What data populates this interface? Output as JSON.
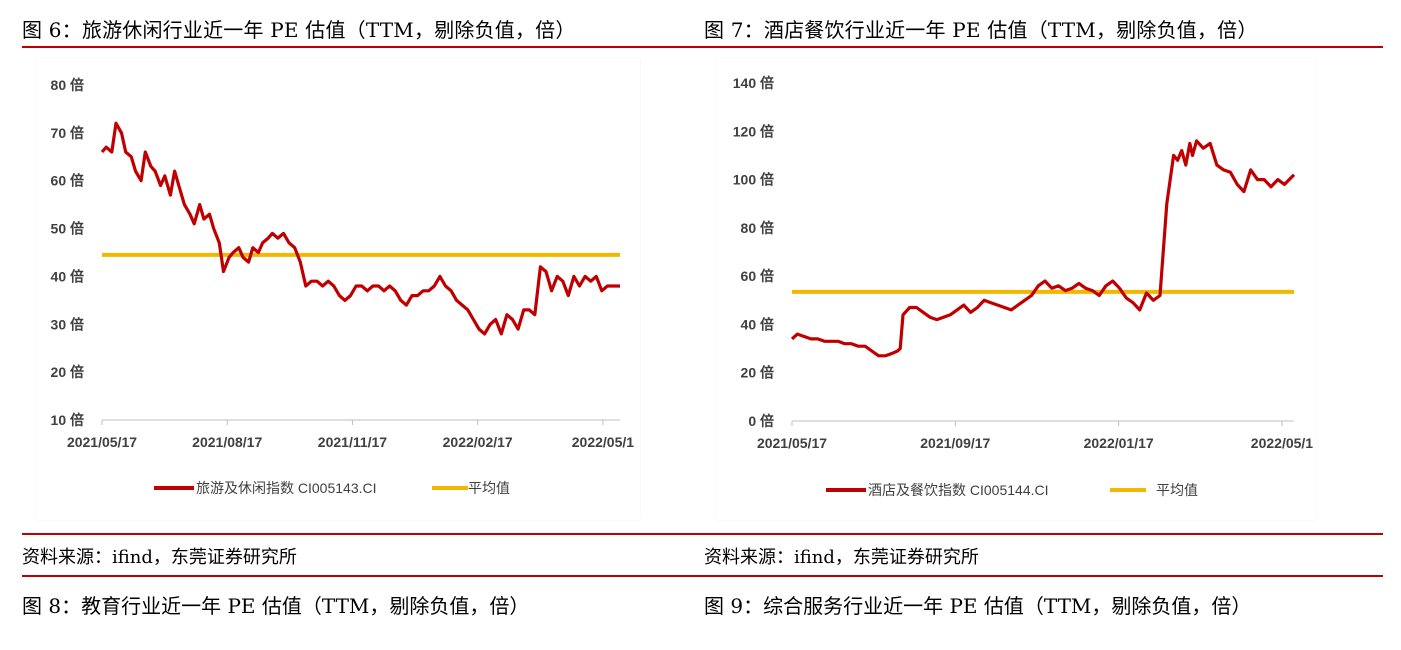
{
  "figures": {
    "fig6_title": "图 6：旅游休闲行业近一年 PE 估值（TTM，剔除负值，倍）",
    "fig7_title": "图 7：酒店餐饮行业近一年 PE 估值（TTM，剔除负值，倍）",
    "fig8_title": "图 8：教育行业近一年 PE 估值（TTM，剔除负值，倍）",
    "fig9_title": "图 9：综合服务行业近一年 PE 估值（TTM，剔除负值，倍）",
    "source_left": "资料来源：ifind，东莞证券研究所",
    "source_right": "资料来源：ifind，东莞证券研究所"
  },
  "colors": {
    "series": "#c00000",
    "average": "#f2b700",
    "rule": "#c00000"
  },
  "chart_data": [
    {
      "type": "line",
      "ylim": [
        10,
        80
      ],
      "yticks": [
        "10 倍",
        "20 倍",
        "30 倍",
        "40 倍",
        "50 倍",
        "60 倍",
        "70 倍",
        "80 倍"
      ],
      "x_ticks": [
        "2021/05/17",
        "2021/08/17",
        "2021/11/17",
        "2022/02/17",
        "2022/05/1"
      ],
      "series": [
        {
          "name": "旅游及休闲指数 CI005143.CI",
          "dates": [
            "2021-05-17",
            "2021-05-20",
            "2021-05-24",
            "2021-05-27",
            "2021-05-31",
            "2021-06-03",
            "2021-06-07",
            "2021-06-10",
            "2021-06-14",
            "2021-06-17",
            "2021-06-21",
            "2021-06-24",
            "2021-06-28",
            "2021-07-01",
            "2021-07-05",
            "2021-07-08",
            "2021-07-12",
            "2021-07-15",
            "2021-07-19",
            "2021-07-22",
            "2021-07-26",
            "2021-07-29",
            "2021-08-02",
            "2021-08-05",
            "2021-08-09",
            "2021-08-12",
            "2021-08-16",
            "2021-08-19",
            "2021-08-23",
            "2021-08-26",
            "2021-08-30",
            "2021-09-02",
            "2021-09-06",
            "2021-09-09",
            "2021-09-13",
            "2021-09-16",
            "2021-09-20",
            "2021-09-24",
            "2021-09-28",
            "2021-10-02",
            "2021-10-06",
            "2021-10-10",
            "2021-10-14",
            "2021-10-18",
            "2021-10-22",
            "2021-10-26",
            "2021-10-30",
            "2021-11-03",
            "2021-11-07",
            "2021-11-11",
            "2021-11-15",
            "2021-11-19",
            "2021-11-23",
            "2021-11-27",
            "2021-12-01",
            "2021-12-05",
            "2021-12-09",
            "2021-12-13",
            "2021-12-17",
            "2021-12-21",
            "2021-12-25",
            "2021-12-29",
            "2022-01-02",
            "2022-01-06",
            "2022-01-10",
            "2022-01-14",
            "2022-01-18",
            "2022-01-22",
            "2022-01-26",
            "2022-01-30",
            "2022-02-03",
            "2022-02-07",
            "2022-02-11",
            "2022-02-15",
            "2022-02-19",
            "2022-02-23",
            "2022-02-27",
            "2022-03-03",
            "2022-03-07",
            "2022-03-11",
            "2022-03-15",
            "2022-03-19",
            "2022-03-23",
            "2022-03-27",
            "2022-03-31",
            "2022-04-04",
            "2022-04-08",
            "2022-04-12",
            "2022-04-16",
            "2022-04-20",
            "2022-04-24",
            "2022-04-28",
            "2022-05-02",
            "2022-05-06",
            "2022-05-10",
            "2022-05-14",
            "2022-05-18",
            "2022-05-23"
          ],
          "values": [
            66,
            67,
            66,
            72,
            70,
            66,
            65,
            62,
            60,
            66,
            63,
            62,
            59,
            61,
            57,
            62,
            58,
            55,
            53,
            51,
            55,
            52,
            53,
            50,
            47,
            41,
            44,
            45,
            46,
            44,
            43,
            46,
            45,
            47,
            48,
            49,
            48,
            49,
            47,
            46,
            43,
            38,
            39,
            39,
            38,
            39,
            38,
            36,
            35,
            36,
            38,
            38,
            37,
            38,
            38,
            37,
            38,
            37,
            35,
            34,
            36,
            36,
            37,
            37,
            38,
            40,
            38,
            37,
            35,
            34,
            33,
            31,
            29,
            28,
            30,
            31,
            28,
            32,
            31,
            29,
            33,
            33,
            32,
            42,
            41,
            37,
            40,
            39,
            36,
            40,
            38,
            40,
            39,
            40,
            37,
            38,
            38,
            38
          ]
        },
        {
          "name": "平均值",
          "values": [
            44.5
          ]
        }
      ]
    },
    {
      "type": "line",
      "ylim": [
        0,
        140
      ],
      "yticks": [
        "0 倍",
        "20 倍",
        "40 倍",
        "60 倍",
        "80 倍",
        "100 倍",
        "120 倍",
        "140 倍"
      ],
      "x_ticks": [
        "2021/05/17",
        "2021/09/17",
        "2022/01/17",
        "2022/05/1"
      ],
      "series": [
        {
          "name": "酒店及餐饮指数 CI005144.CI",
          "dates": [
            "2021-05-17",
            "2021-05-21",
            "2021-05-26",
            "2021-05-31",
            "2021-06-05",
            "2021-06-10",
            "2021-06-15",
            "2021-06-20",
            "2021-06-25",
            "2021-06-30",
            "2021-07-05",
            "2021-07-10",
            "2021-07-15",
            "2021-07-20",
            "2021-07-25",
            "2021-07-30",
            "2021-08-03",
            "2021-08-05",
            "2021-08-07",
            "2021-08-12",
            "2021-08-17",
            "2021-08-22",
            "2021-08-27",
            "2021-09-01",
            "2021-09-06",
            "2021-09-11",
            "2021-09-16",
            "2021-09-21",
            "2021-09-26",
            "2021-10-01",
            "2021-10-06",
            "2021-10-11",
            "2021-10-16",
            "2021-10-21",
            "2021-10-26",
            "2021-10-31",
            "2021-11-05",
            "2021-11-10",
            "2021-11-15",
            "2021-11-20",
            "2021-11-25",
            "2021-11-30",
            "2021-12-05",
            "2021-12-10",
            "2021-12-15",
            "2021-12-20",
            "2021-12-25",
            "2021-12-30",
            "2022-01-04",
            "2022-01-09",
            "2022-01-14",
            "2022-01-19",
            "2022-01-24",
            "2022-01-29",
            "2022-02-03",
            "2022-02-08",
            "2022-02-13",
            "2022-02-18",
            "2022-02-23",
            "2022-02-26",
            "2022-03-01",
            "2022-03-04",
            "2022-03-07",
            "2022-03-09",
            "2022-03-12",
            "2022-03-17",
            "2022-03-22",
            "2022-03-27",
            "2022-04-01",
            "2022-04-06",
            "2022-04-11",
            "2022-04-16",
            "2022-04-21",
            "2022-04-26",
            "2022-05-01",
            "2022-05-06",
            "2022-05-11",
            "2022-05-16",
            "2022-05-23"
          ],
          "values": [
            34,
            36,
            35,
            34,
            34,
            33,
            33,
            33,
            32,
            32,
            31,
            31,
            29,
            27,
            27,
            28,
            29,
            30,
            44,
            47,
            47,
            45,
            43,
            42,
            43,
            44,
            46,
            48,
            45,
            47,
            50,
            49,
            48,
            47,
            46,
            48,
            50,
            52,
            56,
            58,
            55,
            56,
            54,
            55,
            57,
            55,
            54,
            52,
            56,
            58,
            55,
            51,
            49,
            46,
            53,
            50,
            52,
            90,
            110,
            108,
            112,
            106,
            115,
            110,
            116,
            113,
            115,
            106,
            104,
            103,
            98,
            95,
            104,
            100,
            100,
            97,
            100,
            98,
            102
          ]
        },
        {
          "name": "平均值",
          "values": [
            53.5
          ]
        }
      ]
    }
  ]
}
